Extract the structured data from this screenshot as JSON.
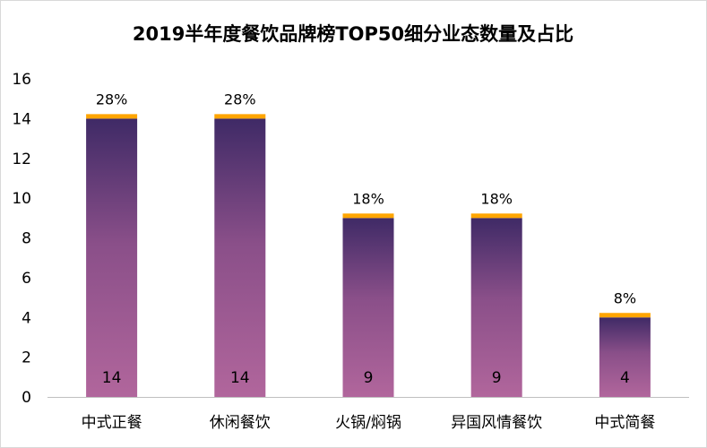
{
  "chart_data": {
    "type": "bar",
    "title": "2019半年度餐饮品牌榜TOP50细分业态数量及占比",
    "categories": [
      "中式正餐",
      "休闲餐饮",
      "火锅/焖锅",
      "异国风情餐饮",
      "中式简餐"
    ],
    "values": [
      14,
      14,
      9,
      9,
      4
    ],
    "percent_labels": [
      "28%",
      "28%",
      "18%",
      "18%",
      "8%"
    ],
    "value_labels": [
      "14",
      "14",
      "9",
      "9",
      "4"
    ],
    "ylim": [
      0,
      16
    ],
    "yticks": [
      0,
      2,
      4,
      6,
      8,
      10,
      12,
      14,
      16
    ],
    "xlabel": "",
    "ylabel": "",
    "grid": false,
    "colors": {
      "bar_top": "#3f2a66",
      "bar_mid": "#8a4f89",
      "bar_bottom": "#b1669c",
      "cap": "#ffa500",
      "axis": "#bfbfbf"
    }
  }
}
